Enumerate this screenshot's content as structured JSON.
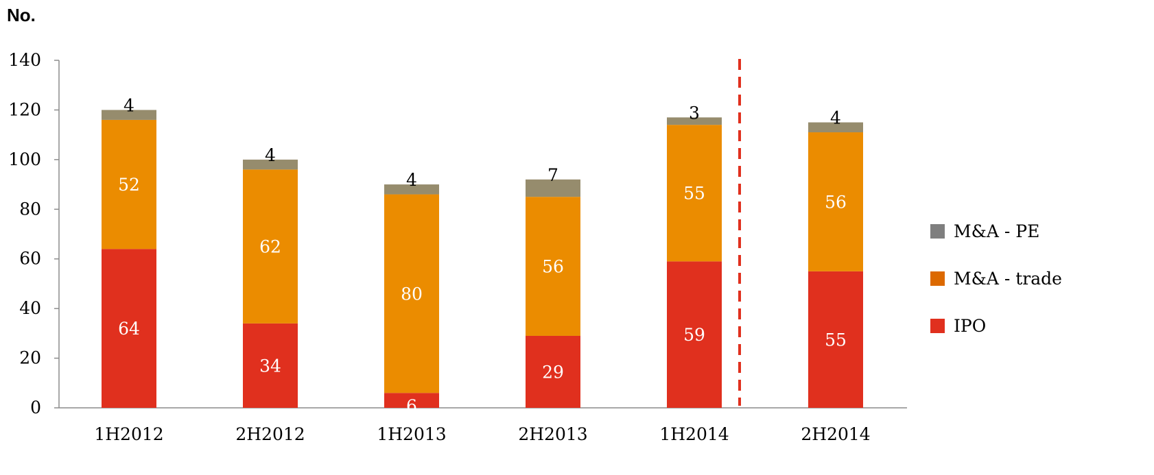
{
  "chart_data": {
    "type": "bar",
    "stacked": true,
    "unit_label": "No.",
    "categories": [
      "1H2012",
      "2H2012",
      "1H2013",
      "2H2013",
      "1H2014",
      "2H2014"
    ],
    "series": [
      {
        "name": "IPO",
        "values": [
          64,
          34,
          6,
          29,
          59,
          55
        ],
        "color": "#E0301E",
        "label_color": "#ffffff"
      },
      {
        "name": "M&A - trade",
        "values": [
          52,
          62,
          80,
          56,
          55,
          56
        ],
        "color": "#EB8C00",
        "label_color": "#ffffff"
      },
      {
        "name": "M&A - PE",
        "values": [
          4,
          4,
          4,
          7,
          3,
          4
        ],
        "color": "#968C6D",
        "label_color": "#000000"
      }
    ],
    "legend": {
      "position": "right",
      "items": [
        {
          "name": "M&A - PE",
          "color": "#7F7F7F"
        },
        {
          "name": "M&A - trade",
          "color": "#DC6900"
        },
        {
          "name": "IPO",
          "color": "#E0301E"
        }
      ]
    },
    "ylim": [
      0,
      140
    ],
    "yticks": [
      0,
      20,
      40,
      60,
      80,
      100,
      120,
      140
    ],
    "divider_after_category": "1H2014",
    "divider_color": "#E0301E",
    "grid": false
  }
}
